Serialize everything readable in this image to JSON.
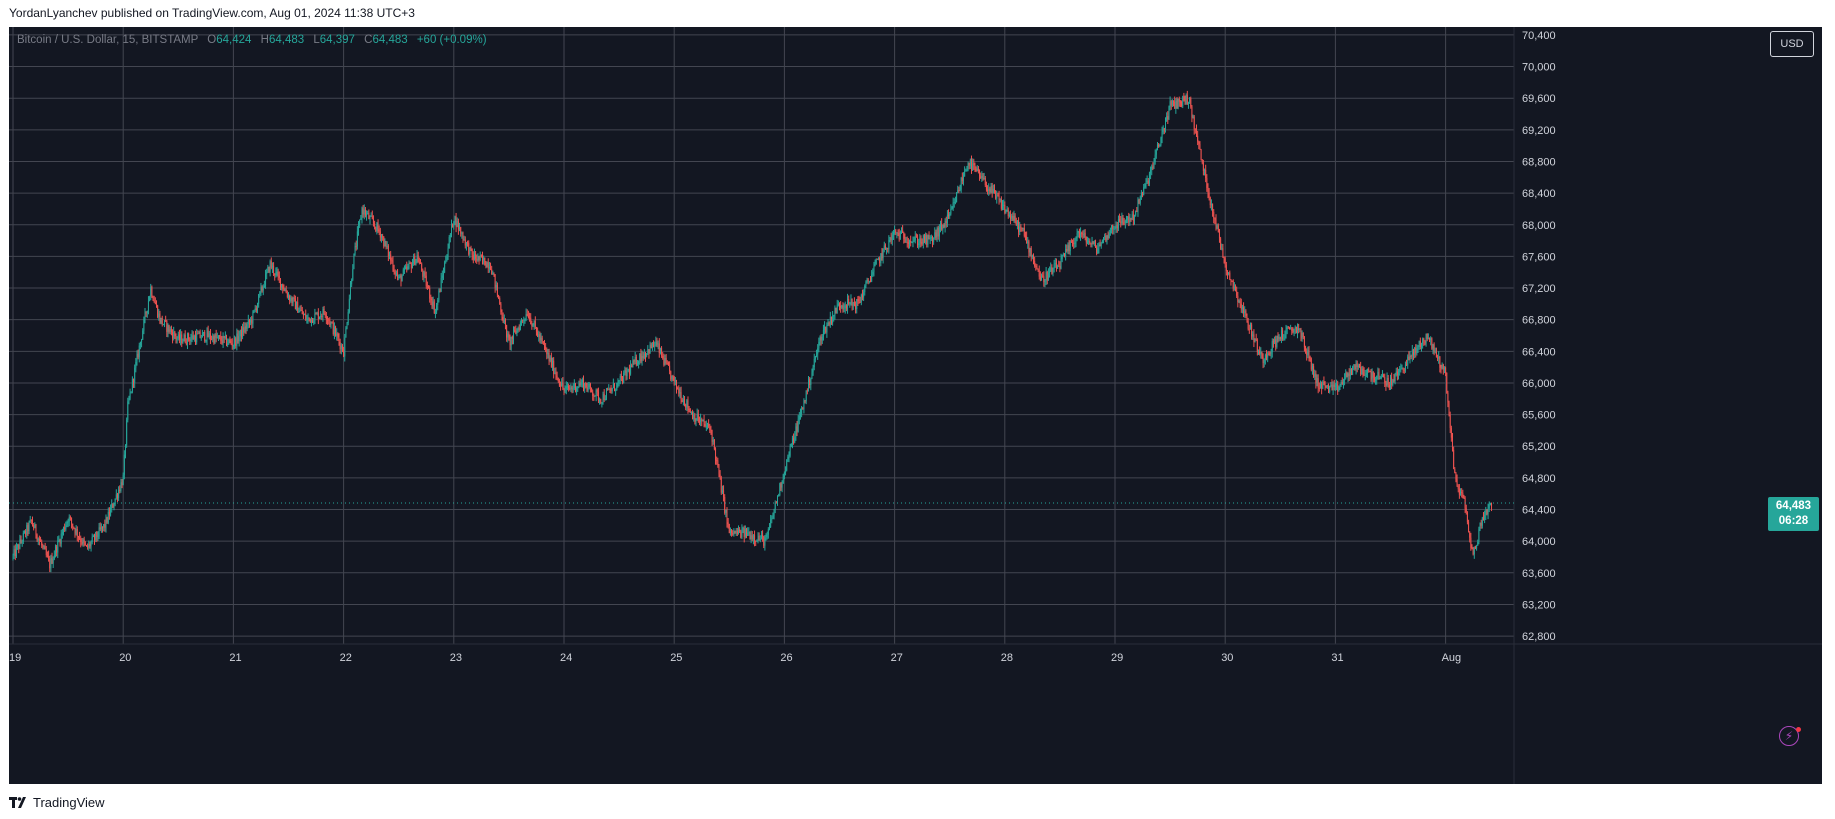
{
  "header": {
    "text": "YordanLyanchev published on TradingView.com, Aug 01, 2024 11:38 UTC+3"
  },
  "legend": {
    "symbol": "Bitcoin / U.S. Dollar, 15, BITSTAMP",
    "o_label": "O",
    "o_value": "64,424",
    "h_label": "H",
    "h_value": "64,483",
    "l_label": "L",
    "l_value": "64,397",
    "c_label": "C",
    "c_value": "64,483",
    "change": "+60 (+0.09%)"
  },
  "currency_button": "USD",
  "last_price": {
    "price": "64,483",
    "countdown": "06:28"
  },
  "footer": {
    "brand": "TradingView"
  },
  "colors": {
    "up": "#26a69a",
    "down": "#ef5350",
    "background": "#131722",
    "grid": "#434651",
    "accent": "#ab47bc"
  },
  "icons": [
    "tradingview-logo-icon",
    "lightning-icon"
  ],
  "chart_data": {
    "type": "candlestick",
    "x_tick_labels": [
      "19",
      "20",
      "21",
      "22",
      "23",
      "24",
      "25",
      "26",
      "27",
      "28",
      "29",
      "30",
      "31",
      "Aug"
    ],
    "y_tick_labels": [
      "70,400",
      "70,000",
      "69,600",
      "69,200",
      "68,800",
      "68,400",
      "68,000",
      "67,600",
      "67,200",
      "66,800",
      "66,400",
      "66,000",
      "65,600",
      "65,200",
      "64,800",
      "64,400",
      "64,000",
      "63,600",
      "63,200",
      "62,800"
    ],
    "ylim": [
      62700,
      70500
    ],
    "grid": true,
    "last_close": 64483,
    "path": [
      [
        "Jul 19 00:00",
        63800
      ],
      [
        "Jul 19 04:00",
        64250
      ],
      [
        "Jul 19 08:00",
        63700
      ],
      [
        "Jul 19 12:00",
        64300
      ],
      [
        "Jul 19 16:00",
        63900
      ],
      [
        "Jul 19 20:00",
        64200
      ],
      [
        "Jul 20 00:00",
        64800
      ],
      [
        "Jul 20 01:00",
        65700
      ],
      [
        "Jul 20 04:00",
        66600
      ],
      [
        "Jul 20 06:00",
        67200
      ],
      [
        "Jul 20 08:00",
        66800
      ],
      [
        "Jul 20 12:00",
        66550
      ],
      [
        "Jul 20 18:00",
        66600
      ],
      [
        "Jul 21 00:00",
        66500
      ],
      [
        "Jul 21 04:00",
        66800
      ],
      [
        "Jul 21 08:00",
        67500
      ],
      [
        "Jul 21 12:00",
        67100
      ],
      [
        "Jul 21 16:00",
        66800
      ],
      [
        "Jul 21 20:00",
        66900
      ],
      [
        "Jul 22 00:00",
        66400
      ],
      [
        "Jul 22 02:00",
        67500
      ],
      [
        "Jul 22 04:00",
        68200
      ],
      [
        "Jul 22 08:00",
        67900
      ],
      [
        "Jul 22 12:00",
        67300
      ],
      [
        "Jul 22 16:00",
        67600
      ],
      [
        "Jul 22 20:00",
        66900
      ],
      [
        "Jul 23 00:00",
        68100
      ],
      [
        "Jul 23 04:00",
        67600
      ],
      [
        "Jul 23 08:00",
        67500
      ],
      [
        "Jul 23 12:00",
        66500
      ],
      [
        "Jul 23 16:00",
        66900
      ],
      [
        "Jul 23 20:00",
        66400
      ],
      [
        "Jul 24 00:00",
        65900
      ],
      [
        "Jul 24 04:00",
        66000
      ],
      [
        "Jul 24 08:00",
        65800
      ],
      [
        "Jul 24 12:00",
        66000
      ],
      [
        "Jul 24 16:00",
        66300
      ],
      [
        "Jul 24 20:00",
        66500
      ],
      [
        "Jul 25 00:00",
        66000
      ],
      [
        "Jul 25 04:00",
        65600
      ],
      [
        "Jul 25 08:00",
        65400
      ],
      [
        "Jul 25 12:00",
        64100
      ],
      [
        "Jul 25 16:00",
        64100
      ],
      [
        "Jul 25 20:00",
        64000
      ],
      [
        "Jul 26 00:00",
        64900
      ],
      [
        "Jul 26 04:00",
        65700
      ],
      [
        "Jul 26 08:00",
        66600
      ],
      [
        "Jul 26 12:00",
        67000
      ],
      [
        "Jul 26 16:00",
        67000
      ],
      [
        "Jul 26 20:00",
        67500
      ],
      [
        "Jul 27 00:00",
        67900
      ],
      [
        "Jul 27 04:00",
        67800
      ],
      [
        "Jul 27 08:00",
        67800
      ],
      [
        "Jul 27 12:00",
        68100
      ],
      [
        "Jul 27 16:00",
        68800
      ],
      [
        "Jul 27 20:00",
        68500
      ],
      [
        "Jul 28 00:00",
        68200
      ],
      [
        "Jul 28 04:00",
        67900
      ],
      [
        "Jul 28 08:00",
        67300
      ],
      [
        "Jul 28 12:00",
        67500
      ],
      [
        "Jul 28 16:00",
        67900
      ],
      [
        "Jul 28 20:00",
        67700
      ],
      [
        "Jul 29 00:00",
        68000
      ],
      [
        "Jul 29 04:00",
        68100
      ],
      [
        "Jul 29 08:00",
        68700
      ],
      [
        "Jul 29 12:00",
        69500
      ],
      [
        "Jul 29 16:00",
        69600
      ],
      [
        "Jul 29 20:00",
        68500
      ],
      [
        "Jul 30 00:00",
        67500
      ],
      [
        "Jul 30 04:00",
        66900
      ],
      [
        "Jul 30 08:00",
        66300
      ],
      [
        "Jul 30 12:00",
        66600
      ],
      [
        "Jul 30 16:00",
        66700
      ],
      [
        "Jul 30 20:00",
        66000
      ],
      [
        "Jul 31 00:00",
        65900
      ],
      [
        "Jul 31 04:00",
        66200
      ],
      [
        "Jul 31 08:00",
        66100
      ],
      [
        "Jul 31 12:00",
        66000
      ],
      [
        "Jul 31 16:00",
        66300
      ],
      [
        "Jul 31 20:00",
        66600
      ],
      [
        "Aug 01 00:00",
        66100
      ],
      [
        "Aug 01 02:00",
        64800
      ],
      [
        "Aug 01 04:00",
        64500
      ],
      [
        "Aug 01 06:00",
        63800
      ],
      [
        "Aug 01 08:00",
        64300
      ],
      [
        "Aug 01 10:00",
        64483
      ]
    ]
  }
}
